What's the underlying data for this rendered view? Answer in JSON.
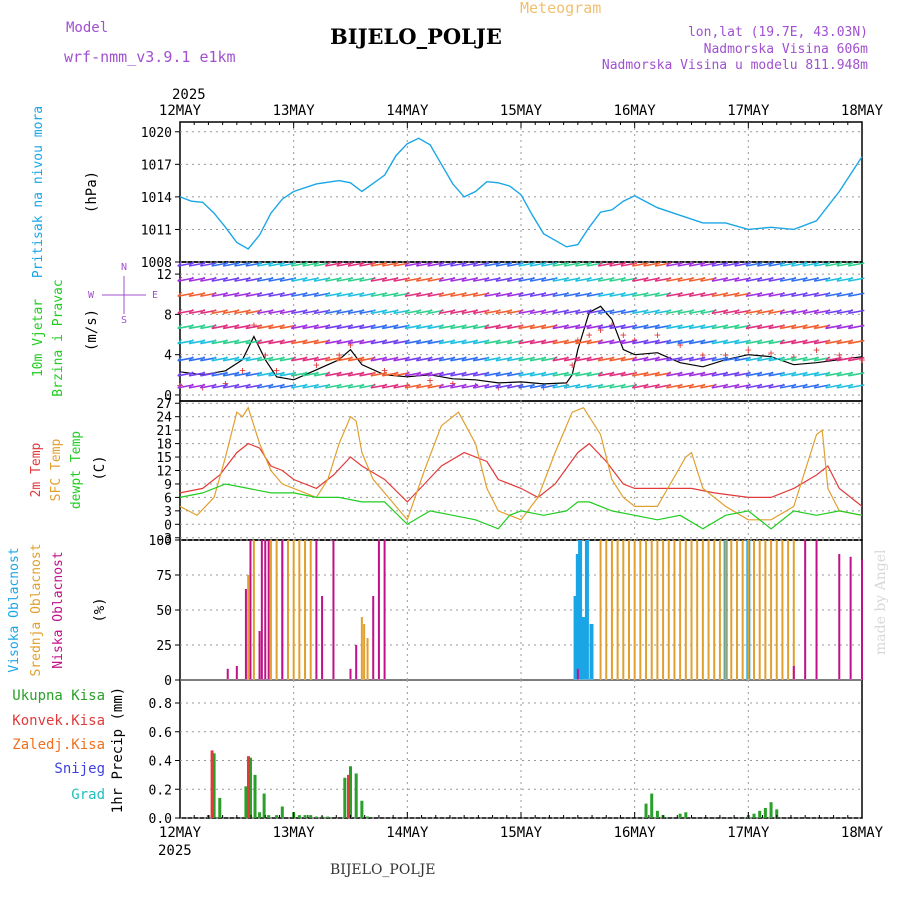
{
  "header": {
    "model_label": "Model",
    "model_name": "wrf-nmm_v3.9.1  e1km",
    "title": "BIJELO_POLJE",
    "subtitle": "Meteogram",
    "coords": "lon,lat (19.7E, 43.03N)",
    "elevation": "Nadmorska Visina 606m",
    "model_elevation": "Nadmorska Visina u modelu 811.948m",
    "footer_title": "BIJELO_POLJE",
    "credit": "made by Angel"
  },
  "colors": {
    "pressure": "#1aa6e6",
    "wind_speed": "#000000",
    "gust": "#e23a3a",
    "temp2m": "#e23a3a",
    "sfc_temp": "#e0a030",
    "dewpt": "#22cc22",
    "cloud_high": "#1aa6e6",
    "cloud_mid": "#e0a030",
    "cloud_low": "#c0108a",
    "precip_total": "#2aa02a",
    "precip_conv": "#e23a3a",
    "precip_frz": "#f07020",
    "precip_snow": "#4040e0",
    "precip_hail": "#20c0c0",
    "model": "#a050d0"
  },
  "chart_data": [
    {
      "type": "line",
      "panel": "pressure",
      "xlabel_year": "2025",
      "x_ticks": [
        "12MAY",
        "13MAY",
        "14MAY",
        "15MAY",
        "16MAY",
        "17MAY",
        "18MAY"
      ],
      "ylabel": "Pritisak na nivou mora",
      "unit": "(hPa)",
      "yticks": [
        1008,
        1011,
        1014,
        1017,
        1020
      ],
      "ylim": [
        1008,
        1020.9
      ],
      "grid": true,
      "series": [
        {
          "x": [
            0,
            0.1,
            0.2,
            0.3,
            0.4,
            0.5,
            0.6,
            0.7,
            0.8,
            0.9,
            1.0,
            1.2,
            1.4,
            1.5,
            1.6,
            1.8,
            1.9,
            2.0,
            2.1,
            2.2,
            2.3,
            2.4,
            2.5,
            2.6,
            2.7,
            2.8,
            2.9,
            3.0,
            3.1,
            3.2,
            3.3,
            3.4,
            3.5,
            3.6,
            3.7,
            3.8,
            3.9,
            4.0,
            4.2,
            4.4,
            4.6,
            4.8,
            5.0,
            5.2,
            5.4,
            5.6,
            5.8,
            6.0
          ],
          "values": [
            1014,
            1013.6,
            1013.5,
            1012.5,
            1011.2,
            1009.8,
            1009.2,
            1010.5,
            1012.5,
            1013.8,
            1014.5,
            1015.2,
            1015.5,
            1015.3,
            1014.5,
            1016.0,
            1017.8,
            1018.9,
            1019.4,
            1018.8,
            1017.0,
            1015.2,
            1014.0,
            1014.5,
            1015.4,
            1015.3,
            1015.0,
            1014.2,
            1012.3,
            1010.6,
            1010.0,
            1009.4,
            1009.6,
            1011.2,
            1012.6,
            1012.8,
            1013.6,
            1014.1,
            1013.0,
            1012.3,
            1011.6,
            1011.6,
            1011.0,
            1011.2,
            1011.0,
            1011.8,
            1014.5,
            1017.7
          ]
        }
      ]
    },
    {
      "type": "line",
      "panel": "wind",
      "ylabel": "10m Vjetar Brzina i Pravac",
      "unit": "(m/s)",
      "direction_key": [
        "N",
        "W",
        "E",
        "S"
      ],
      "yticks": [
        0,
        4,
        8,
        12
      ],
      "ylim": [
        -0.6,
        13.2
      ],
      "grid": true,
      "series": [
        {
          "name": "speed",
          "x": [
            0,
            0.2,
            0.4,
            0.55,
            0.65,
            0.75,
            0.85,
            1.0,
            1.2,
            1.4,
            1.5,
            1.6,
            1.8,
            2.0,
            2.2,
            2.4,
            2.6,
            2.8,
            3.0,
            3.2,
            3.4,
            3.45,
            3.5,
            3.6,
            3.7,
            3.8,
            3.9,
            4.0,
            4.2,
            4.4,
            4.6,
            4.8,
            5.0,
            5.2,
            5.4,
            5.6,
            5.8,
            6.0
          ],
          "values": [
            2.3,
            2.0,
            2.4,
            3.5,
            5.8,
            3.5,
            1.8,
            1.5,
            2.5,
            3.5,
            4.5,
            3.0,
            2.0,
            1.8,
            2.0,
            1.6,
            1.5,
            1.2,
            1.3,
            1.1,
            1.2,
            2.0,
            4.5,
            8.2,
            8.8,
            7.5,
            4.5,
            4.0,
            4.2,
            3.2,
            2.8,
            3.5,
            4.0,
            3.8,
            3.0,
            3.2,
            3.5,
            3.8
          ]
        },
        {
          "name": "gust",
          "x": [
            0,
            0.2,
            0.4,
            0.55,
            0.65,
            0.75,
            0.85,
            1.0,
            1.2,
            1.4,
            1.5,
            1.6,
            1.8,
            2.0,
            2.2,
            2.4,
            2.6,
            2.8,
            3.0,
            3.2,
            3.4,
            3.45,
            3.5,
            3.6,
            3.7,
            3.8,
            3.9,
            4.0,
            4.2,
            4.4,
            4.6,
            4.8,
            5.0,
            5.2,
            5.4,
            5.6,
            5.8,
            6.0
          ],
          "values": [
            1.0,
            0.8,
            1.2,
            2.5,
            7.0,
            4.0,
            2.5,
            2.0,
            3.0,
            4.0,
            5.0,
            3.5,
            2.5,
            1.0,
            1.5,
            1.2,
            1.0,
            0.8,
            0.9,
            0.8,
            1.0,
            3.0,
            5.5,
            6.0,
            6.5,
            7.0,
            6.0,
            5.5,
            6.0,
            5.0,
            4.0,
            4.0,
            4.5,
            4.2,
            3.8,
            4.5,
            4.0,
            3.5
          ]
        }
      ]
    },
    {
      "type": "line",
      "panel": "temperature",
      "series_labels": [
        "2m Temp",
        "SFC Temp",
        "dewpt Temp"
      ],
      "unit": "(C)",
      "yticks": [
        -3,
        0,
        3,
        6,
        9,
        12,
        15,
        18,
        21,
        24,
        27
      ],
      "ylim": [
        -3.5,
        27.5
      ],
      "grid": true,
      "series": [
        {
          "name": "2m Temp",
          "x": [
            0,
            0.2,
            0.35,
            0.5,
            0.6,
            0.7,
            0.8,
            0.9,
            1.0,
            1.2,
            1.35,
            1.5,
            1.6,
            1.8,
            2.0,
            2.15,
            2.3,
            2.5,
            2.7,
            2.8,
            3.0,
            3.15,
            3.3,
            3.5,
            3.6,
            3.75,
            3.9,
            4.0,
            4.2,
            4.5,
            4.7,
            5.0,
            5.2,
            5.4,
            5.6,
            5.7,
            5.8,
            6.0
          ],
          "values": [
            7,
            8,
            11,
            16,
            18,
            17,
            13,
            12,
            10,
            8,
            11,
            15,
            13,
            10,
            5,
            9,
            13,
            16,
            14,
            10,
            8,
            6,
            9,
            16,
            18,
            14,
            9,
            8,
            8,
            8,
            7,
            6,
            6,
            8,
            11,
            13,
            8,
            4
          ]
        },
        {
          "name": "SFC Temp",
          "x": [
            0,
            0.15,
            0.3,
            0.4,
            0.5,
            0.55,
            0.6,
            0.7,
            0.8,
            0.9,
            1.0,
            1.2,
            1.3,
            1.4,
            1.5,
            1.55,
            1.6,
            1.7,
            1.8,
            2.0,
            2.15,
            2.3,
            2.45,
            2.6,
            2.7,
            2.8,
            3.0,
            3.15,
            3.3,
            3.45,
            3.55,
            3.7,
            3.8,
            3.9,
            4.0,
            4.2,
            4.45,
            4.5,
            4.6,
            4.8,
            5.0,
            5.2,
            5.4,
            5.6,
            5.65,
            5.7,
            5.8,
            6.0
          ],
          "values": [
            4,
            2,
            6,
            15,
            25,
            24,
            26,
            18,
            12,
            9,
            8,
            6,
            10,
            18,
            24,
            23,
            16,
            10,
            7,
            1,
            12,
            22,
            25,
            18,
            8,
            3,
            1,
            6,
            16,
            25,
            26,
            20,
            10,
            6,
            4,
            4,
            15,
            16,
            8,
            4,
            1,
            1,
            4,
            20,
            21,
            8,
            3,
            2
          ]
        },
        {
          "name": "dewpt Temp",
          "x": [
            0,
            0.2,
            0.4,
            0.6,
            0.8,
            1.0,
            1.2,
            1.4,
            1.6,
            1.8,
            2.0,
            2.2,
            2.4,
            2.6,
            2.8,
            2.9,
            3.0,
            3.2,
            3.4,
            3.5,
            3.6,
            3.8,
            4.0,
            4.2,
            4.4,
            4.6,
            4.8,
            5.0,
            5.2,
            5.4,
            5.6,
            5.8,
            6.0
          ],
          "values": [
            6,
            7,
            9,
            8,
            7,
            7,
            6,
            6,
            5,
            5,
            0,
            3,
            2,
            1,
            -1,
            2,
            3,
            2,
            3,
            5,
            5,
            3,
            2,
            1,
            2,
            -1,
            2,
            3,
            -1,
            3,
            2,
            3,
            2
          ]
        }
      ]
    },
    {
      "type": "bar",
      "panel": "cloud",
      "series_labels": [
        "Visoka Oblacnost",
        "Srednja Oblacnost",
        "Niska Oblacnost"
      ],
      "unit": "(%)",
      "yticks": [
        0,
        25,
        50,
        75,
        100
      ],
      "ylim": [
        0,
        100
      ],
      "grid": true,
      "series": [
        {
          "name": "Visoka Oblacnost",
          "x": [
            3.48,
            3.5,
            3.52,
            3.55,
            3.58,
            3.62,
            4.8,
            5.0
          ],
          "values": [
            60,
            90,
            100,
            45,
            100,
            40,
            100,
            100
          ]
        },
        {
          "name": "Srednja Oblacnost",
          "x": [
            0.6,
            0.65,
            0.8,
            0.85,
            0.9,
            0.95,
            1.0,
            1.05,
            1.1,
            1.15,
            1.6,
            1.62,
            1.65,
            3.7,
            3.75,
            3.8,
            3.85,
            3.9,
            3.95,
            4.0,
            4.05,
            4.1,
            4.15,
            4.2,
            4.25,
            4.3,
            4.35,
            4.4,
            4.45,
            4.5,
            4.55,
            4.6,
            4.65,
            4.7,
            4.75,
            4.8,
            4.85,
            4.9,
            4.95,
            5.0,
            5.05,
            5.1,
            5.15,
            5.2,
            5.25,
            5.3,
            5.35,
            5.4
          ],
          "values": [
            75,
            100,
            100,
            100,
            100,
            100,
            100,
            100,
            100,
            100,
            45,
            40,
            30,
            100,
            100,
            100,
            100,
            100,
            100,
            100,
            100,
            100,
            100,
            100,
            100,
            100,
            100,
            100,
            100,
            100,
            100,
            100,
            100,
            100,
            100,
            100,
            100,
            100,
            100,
            100,
            100,
            100,
            100,
            100,
            100,
            100,
            100,
            100
          ]
        },
        {
          "name": "Niska Oblacnost",
          "x": [
            0.42,
            0.5,
            0.58,
            0.62,
            0.7,
            0.72,
            0.75,
            0.78,
            0.9,
            1.2,
            1.25,
            1.35,
            1.5,
            1.55,
            1.7,
            1.75,
            1.8,
            2.4,
            2.5,
            2.7,
            3.4,
            3.5,
            5.4,
            5.5,
            5.6,
            5.8,
            5.9,
            6.0
          ],
          "values": [
            8,
            10,
            65,
            100,
            35,
            100,
            100,
            100,
            100,
            100,
            60,
            100,
            8,
            25,
            60,
            100,
            100,
            5,
            5,
            5,
            5,
            8,
            10,
            100,
            100,
            90,
            88,
            86
          ]
        }
      ]
    },
    {
      "type": "bar",
      "panel": "precip",
      "series_labels": [
        "Ukupna Kisa",
        "Konvek.Kisa",
        "Zaledj.Kisa",
        "Snijeg",
        "Grad"
      ],
      "ylabel": "1hr Precip",
      "unit": "(mm)",
      "yticks": [
        0.0,
        0.2,
        0.4,
        0.6,
        0.8
      ],
      "ylim": [
        0,
        0.96
      ],
      "grid": true,
      "series": [
        {
          "name": "Ukupna Kisa",
          "x": [
            0.25,
            0.3,
            0.35,
            0.58,
            0.62,
            0.66,
            0.7,
            0.74,
            0.78,
            0.85,
            0.9,
            1.0,
            1.05,
            1.1,
            1.15,
            1.2,
            1.25,
            1.3,
            1.45,
            1.5,
            1.55,
            1.6,
            1.65,
            4.1,
            4.15,
            4.2,
            4.25,
            4.4,
            4.45,
            5.0,
            5.05,
            5.1,
            5.15,
            5.2,
            5.25
          ],
          "values": [
            0.02,
            0.45,
            0.14,
            0.22,
            0.42,
            0.3,
            0.04,
            0.17,
            0.02,
            0.02,
            0.08,
            0.04,
            0.02,
            0.02,
            0.02,
            0.01,
            0.01,
            0.01,
            0.28,
            0.36,
            0.31,
            0.12,
            0.01,
            0.1,
            0.17,
            0.05,
            0.02,
            0.03,
            0.04,
            0.02,
            0.03,
            0.05,
            0.07,
            0.11,
            0.06
          ]
        },
        {
          "name": "Konvek.Kisa",
          "x": [
            0.3,
            0.62,
            1.5
          ],
          "values": [
            0.47,
            0.43,
            0.3
          ]
        }
      ]
    }
  ]
}
